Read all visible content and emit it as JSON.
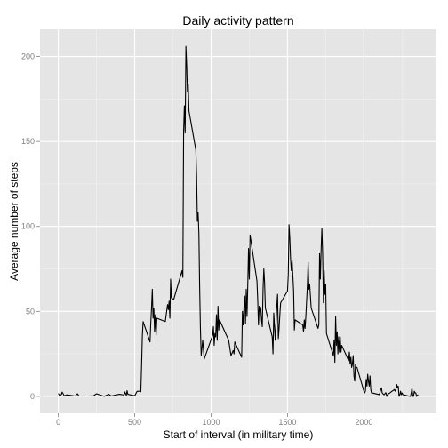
{
  "chart_data": {
    "type": "line",
    "title": "Daily activity pattern",
    "xlabel": "Start of interval (in military time)",
    "ylabel": "Average number of steps",
    "xlim": [
      -120,
      2475
    ],
    "ylim": [
      -10,
      216
    ],
    "x_ticks": [
      0,
      500,
      1000,
      1500,
      2000
    ],
    "y_ticks": [
      0,
      50,
      100,
      150,
      200
    ],
    "x_tick_labels": [
      "0",
      "500",
      "1000",
      "1500",
      "2000"
    ],
    "y_tick_labels": [
      "0",
      "50",
      "100",
      "150",
      "200"
    ],
    "grid": true,
    "background": "#e5e5e5",
    "grid_color": "#ffffff",
    "line_color": "#000000",
    "series": [
      {
        "values": [
          [
            0,
            1.7
          ],
          [
            10,
            0.2
          ],
          [
            20,
            1.1
          ],
          [
            25,
            2.5
          ],
          [
            40,
            0.2
          ],
          [
            55,
            0.9
          ],
          [
            100,
            0.3
          ],
          [
            110,
            0.2
          ],
          [
            125,
            1.5
          ],
          [
            135,
            0.2
          ],
          [
            200,
            0.2
          ],
          [
            230,
            0.3
          ],
          [
            250,
            1.5
          ],
          [
            300,
            0
          ],
          [
            330,
            1.2
          ],
          [
            345,
            0.2
          ],
          [
            400,
            1.2
          ],
          [
            430,
            0.8
          ],
          [
            435,
            2.6
          ],
          [
            445,
            0.6
          ],
          [
            450,
            3.3
          ],
          [
            455,
            1.2
          ],
          [
            500,
            0.3
          ],
          [
            515,
            2.9
          ],
          [
            530,
            3.0
          ],
          [
            540,
            2.7
          ],
          [
            545,
            18
          ],
          [
            550,
            36
          ],
          [
            555,
            44
          ],
          [
            600,
            32
          ],
          [
            605,
            43
          ],
          [
            610,
            52
          ],
          [
            615,
            63
          ],
          [
            620,
            46
          ],
          [
            625,
            52
          ],
          [
            630,
            38
          ],
          [
            635,
            48
          ],
          [
            640,
            36
          ],
          [
            645,
            46
          ],
          [
            700,
            44
          ],
          [
            715,
            54
          ],
          [
            720,
            51
          ],
          [
            725,
            56
          ],
          [
            730,
            46
          ],
          [
            735,
            69
          ],
          [
            740,
            58
          ],
          [
            755,
            57
          ],
          [
            810,
            74
          ],
          [
            815,
            70
          ],
          [
            820,
            156
          ],
          [
            825,
            171
          ],
          [
            830,
            155
          ],
          [
            835,
            206
          ],
          [
            840,
            195
          ],
          [
            845,
            179
          ],
          [
            850,
            184
          ],
          [
            855,
            168
          ],
          [
            900,
            145
          ],
          [
            905,
            130
          ],
          [
            910,
            103
          ],
          [
            915,
            108
          ],
          [
            920,
            96
          ],
          [
            925,
            64
          ],
          [
            930,
            40
          ],
          [
            935,
            24
          ],
          [
            945,
            33
          ],
          [
            955,
            22
          ],
          [
            1010,
            36
          ],
          [
            1015,
            41
          ],
          [
            1020,
            30
          ],
          [
            1025,
            37
          ],
          [
            1030,
            35
          ],
          [
            1035,
            48
          ],
          [
            1040,
            33
          ],
          [
            1045,
            53
          ],
          [
            1050,
            39
          ],
          [
            1055,
            45
          ],
          [
            1110,
            34
          ],
          [
            1115,
            33
          ],
          [
            1130,
            24
          ],
          [
            1145,
            27
          ],
          [
            1150,
            25
          ],
          [
            1155,
            32
          ],
          [
            1200,
            23
          ],
          [
            1205,
            50
          ],
          [
            1210,
            42
          ],
          [
            1215,
            52
          ],
          [
            1220,
            59
          ],
          [
            1225,
            43
          ],
          [
            1230,
            63
          ],
          [
            1235,
            47
          ],
          [
            1240,
            66
          ],
          [
            1245,
            87
          ],
          [
            1250,
            69
          ],
          [
            1255,
            95
          ],
          [
            1300,
            68
          ],
          [
            1305,
            57
          ],
          [
            1310,
            42
          ],
          [
            1315,
            53
          ],
          [
            1320,
            53
          ],
          [
            1325,
            52
          ],
          [
            1330,
            45
          ],
          [
            1335,
            41
          ],
          [
            1340,
            63
          ],
          [
            1345,
            75
          ],
          [
            1350,
            67
          ],
          [
            1355,
            52
          ],
          [
            1400,
            35
          ],
          [
            1405,
            25
          ],
          [
            1410,
            49
          ],
          [
            1415,
            41
          ],
          [
            1420,
            33
          ],
          [
            1430,
            53
          ],
          [
            1435,
            60
          ],
          [
            1440,
            34
          ],
          [
            1445,
            40
          ],
          [
            1450,
            48
          ],
          [
            1455,
            55
          ],
          [
            1500,
            62
          ],
          [
            1505,
            72
          ],
          [
            1510,
            101
          ],
          [
            1515,
            93
          ],
          [
            1520,
            81
          ],
          [
            1525,
            74
          ],
          [
            1530,
            80
          ],
          [
            1535,
            71
          ],
          [
            1540,
            62
          ],
          [
            1545,
            39
          ],
          [
            1550,
            45
          ],
          [
            1600,
            42
          ],
          [
            1605,
            38
          ],
          [
            1610,
            45
          ],
          [
            1615,
            40
          ],
          [
            1620,
            47
          ],
          [
            1625,
            56
          ],
          [
            1630,
            65
          ],
          [
            1635,
            79
          ],
          [
            1640,
            63
          ],
          [
            1645,
            66
          ],
          [
            1650,
            59
          ],
          [
            1655,
            52
          ],
          [
            1700,
            40
          ],
          [
            1705,
            42
          ],
          [
            1710,
            84
          ],
          [
            1715,
            69
          ],
          [
            1720,
            86
          ],
          [
            1725,
            99
          ],
          [
            1730,
            84
          ],
          [
            1735,
            55
          ],
          [
            1740,
            74
          ],
          [
            1745,
            60
          ],
          [
            1750,
            66
          ],
          [
            1755,
            37
          ],
          [
            1800,
            24
          ],
          [
            1805,
            33
          ],
          [
            1810,
            20
          ],
          [
            1815,
            47
          ],
          [
            1820,
            30
          ],
          [
            1825,
            38
          ],
          [
            1830,
            25
          ],
          [
            1835,
            35
          ],
          [
            1840,
            26
          ],
          [
            1845,
            35
          ],
          [
            1850,
            26
          ],
          [
            1855,
            30
          ],
          [
            1900,
            21
          ],
          [
            1905,
            26
          ],
          [
            1910,
            19
          ],
          [
            1915,
            23
          ],
          [
            1920,
            17
          ],
          [
            1925,
            19
          ],
          [
            1930,
            24
          ],
          [
            1935,
            12
          ],
          [
            1940,
            9
          ],
          [
            1945,
            19
          ],
          [
            1950,
            17
          ],
          [
            1955,
            17
          ],
          [
            2000,
            3
          ],
          [
            2005,
            2
          ],
          [
            2010,
            3
          ],
          [
            2015,
            10
          ],
          [
            2020,
            6
          ],
          [
            2025,
            13
          ],
          [
            2030,
            9
          ],
          [
            2035,
            6
          ],
          [
            2040,
            12
          ],
          [
            2045,
            4
          ],
          [
            2050,
            2
          ],
          [
            2055,
            2
          ],
          [
            2100,
            1
          ],
          [
            2105,
            2
          ],
          [
            2110,
            4
          ],
          [
            2115,
            5
          ],
          [
            2120,
            2
          ],
          [
            2125,
            1.5
          ],
          [
            2130,
            1
          ],
          [
            2135,
            1
          ],
          [
            2140,
            2
          ],
          [
            2145,
            2
          ],
          [
            2150,
            0
          ],
          [
            2155,
            1
          ],
          [
            2200,
            4
          ],
          [
            2205,
            3
          ],
          [
            2210,
            4
          ],
          [
            2215,
            7
          ],
          [
            2220,
            5
          ],
          [
            2225,
            6
          ],
          [
            2230,
            0
          ],
          [
            2235,
            0.8
          ],
          [
            2240,
            3
          ],
          [
            2245,
            1
          ],
          [
            2250,
            2
          ],
          [
            2255,
            1
          ],
          [
            2300,
            0
          ],
          [
            2305,
            0
          ],
          [
            2310,
            2
          ],
          [
            2315,
            5
          ],
          [
            2320,
            0
          ],
          [
            2325,
            0
          ],
          [
            2330,
            3
          ],
          [
            2335,
            2
          ],
          [
            2340,
            2
          ],
          [
            2345,
            0
          ],
          [
            2355,
            1
          ]
        ]
      }
    ]
  }
}
